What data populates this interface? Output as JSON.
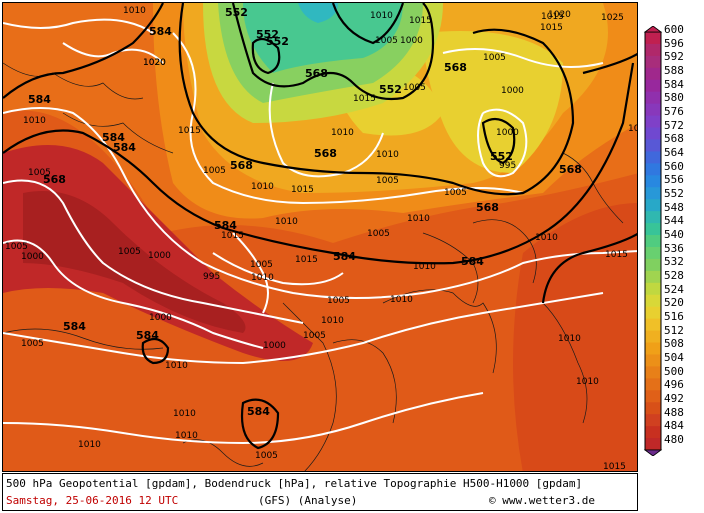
{
  "map": {
    "geopotential_labels": [
      "552",
      "552",
      "552",
      "568",
      "568",
      "568",
      "568",
      "568",
      "584",
      "584",
      "584",
      "584",
      "584",
      "584",
      "584",
      "584",
      "552",
      "552",
      "568",
      "568",
      "584",
      "584"
    ],
    "pressure_labels": [
      "1010",
      "1015",
      "1020",
      "1025",
      "1020",
      "1015",
      "1010",
      "1005",
      "1000",
      "995",
      "1000",
      "1005",
      "1010",
      "1015",
      "1010",
      "1005",
      "1010",
      "1015",
      "1005",
      "1000",
      "1005",
      "1010",
      "1015",
      "1005",
      "1010",
      "1005",
      "1000",
      "995",
      "1000",
      "1005",
      "1010",
      "1015",
      "1010",
      "1005",
      "1010",
      "1015",
      "1005",
      "1010",
      "1005",
      "1010",
      "1005",
      "1010",
      "1015",
      "1010",
      "1000",
      "1005",
      "1010",
      "1015",
      "1020",
      "1010",
      "1015",
      "1000",
      "1005",
      "1010",
      "1005",
      "1010",
      "1015",
      "1010"
    ]
  },
  "legend": {
    "colors": [
      "#c02050",
      "#b0286a",
      "#a82d7b",
      "#a0288c",
      "#98289d",
      "#9030ad",
      "#8838bb",
      "#7f40c8",
      "#7048d0",
      "#5858d6",
      "#4068dc",
      "#3078e0",
      "#2888e0",
      "#2898d8",
      "#28a8c8",
      "#30b8b0",
      "#38c498",
      "#50cc80",
      "#68d070",
      "#80d060",
      "#a0d450",
      "#c0d840",
      "#d8d838",
      "#e8d030",
      "#f0c028",
      "#f0b020",
      "#f0a018",
      "#ec9018",
      "#e88018",
      "#e47018",
      "#e06018",
      "#d85018",
      "#d04020",
      "#c83020",
      "#c02828"
    ],
    "values": [
      "600",
      "596",
      "592",
      "588",
      "584",
      "580",
      "576",
      "572",
      "568",
      "564",
      "560",
      "556",
      "552",
      "548",
      "544",
      "540",
      "536",
      "532",
      "528",
      "524",
      "520",
      "516",
      "512",
      "508",
      "504",
      "500",
      "496",
      "492",
      "488",
      "484",
      "480"
    ]
  },
  "caption": {
    "line1": "500 hPa Geopotential [gpdam], Bodendruck [hPa], relative Topographie H500-H1000 [gpdam]",
    "date": "Samstag, 25-06-2016  12 UTC",
    "model": "(GFS)  (Analyse)",
    "copyright": "© www.wetter3.de"
  }
}
